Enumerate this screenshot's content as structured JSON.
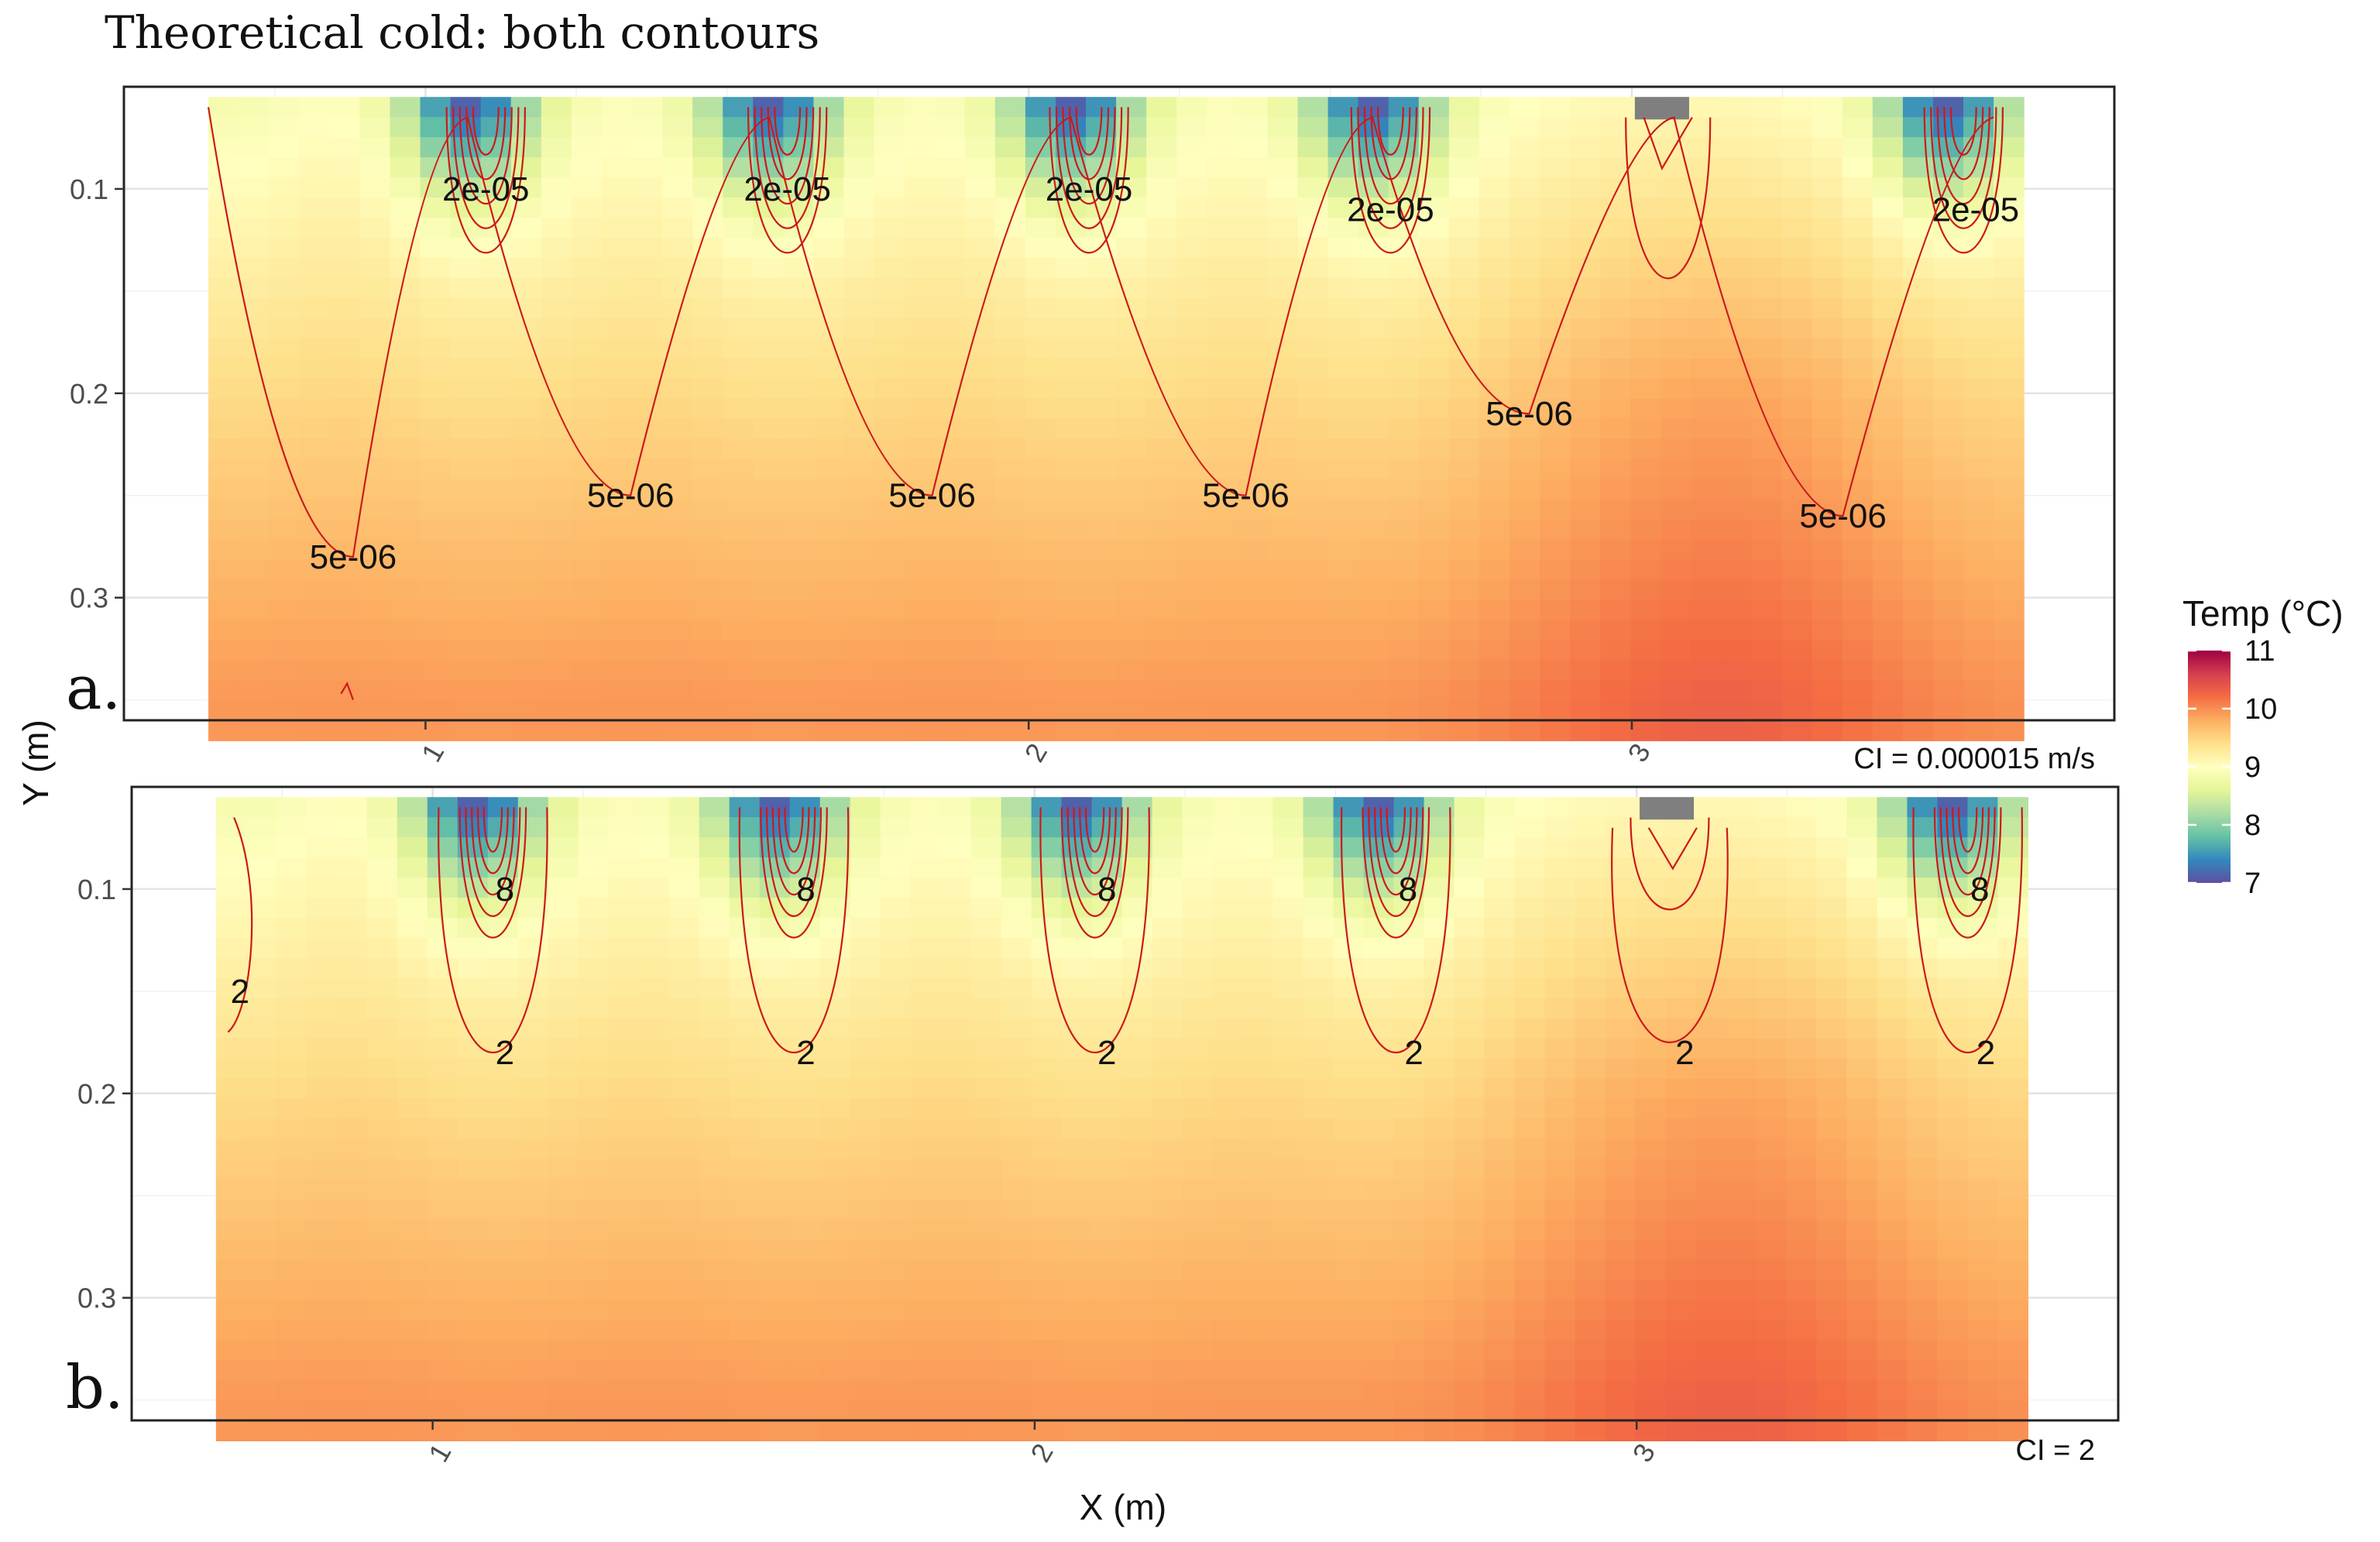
{
  "chart_data": {
    "type": "heatmap",
    "title": "Theoretical cold: both contours",
    "xlabel": "X (m)",
    "ylabel": "Y (m)",
    "xlim": [
      0.5,
      3.8
    ],
    "ylim": [
      0.05,
      0.36
    ],
    "x_ticks": [
      "1",
      "2",
      "3"
    ],
    "y_ticks": [
      "0.1",
      "0.2",
      "0.3"
    ],
    "legend": {
      "title": "Temp (°C)",
      "position": "right",
      "ticks": [
        "11",
        "10",
        "9",
        "8",
        "7"
      ],
      "range": [
        7,
        11
      ],
      "colors": [
        "#5e4fa2",
        "#3288bd",
        "#66c2a5",
        "#abdda4",
        "#e6f598",
        "#ffffbf",
        "#fee08b",
        "#fdae61",
        "#f46d43",
        "#d53e4f",
        "#9e0142"
      ]
    },
    "heat_extent": {
      "x": [
        0.64,
        3.65
      ],
      "y": [
        0.055,
        0.37
      ]
    },
    "cold_sources_x": [
      1.1,
      1.6,
      2.1,
      2.6,
      3.55
    ],
    "missing_source_x": 3.05,
    "panels": [
      {
        "id": "a",
        "label": "a.",
        "ci_text": "CI = 0.000015 m/s",
        "contour_labels": [
          {
            "text": "2e-05",
            "x": 1.1,
            "y": 0.1
          },
          {
            "text": "2e-05",
            "x": 1.6,
            "y": 0.1
          },
          {
            "text": "2e-05",
            "x": 2.1,
            "y": 0.1
          },
          {
            "text": "2e-05",
            "x": 2.6,
            "y": 0.11
          },
          {
            "text": "2e-05",
            "x": 3.57,
            "y": 0.11
          },
          {
            "text": "5e-06",
            "x": 0.88,
            "y": 0.28
          },
          {
            "text": "5e-06",
            "x": 1.34,
            "y": 0.25
          },
          {
            "text": "5e-06",
            "x": 1.84,
            "y": 0.25
          },
          {
            "text": "5e-06",
            "x": 2.36,
            "y": 0.25
          },
          {
            "text": "5e-06",
            "x": 2.83,
            "y": 0.21
          },
          {
            "text": "5e-06",
            "x": 3.35,
            "y": 0.26
          }
        ]
      },
      {
        "id": "b",
        "label": "b.",
        "ci_text": "CI = 2",
        "contour_labels": [
          {
            "text": "8",
            "x": 1.12,
            "y": 0.1
          },
          {
            "text": "8",
            "x": 1.62,
            "y": 0.1
          },
          {
            "text": "8",
            "x": 2.12,
            "y": 0.1
          },
          {
            "text": "8",
            "x": 2.62,
            "y": 0.1
          },
          {
            "text": "8",
            "x": 3.57,
            "y": 0.1
          },
          {
            "text": "2",
            "x": 0.68,
            "y": 0.15
          },
          {
            "text": "2",
            "x": 1.12,
            "y": 0.18
          },
          {
            "text": "2",
            "x": 1.62,
            "y": 0.18
          },
          {
            "text": "2",
            "x": 2.12,
            "y": 0.18
          },
          {
            "text": "2",
            "x": 2.63,
            "y": 0.18
          },
          {
            "text": "2",
            "x": 3.08,
            "y": 0.18
          },
          {
            "text": "2",
            "x": 3.58,
            "y": 0.18
          }
        ]
      }
    ]
  }
}
